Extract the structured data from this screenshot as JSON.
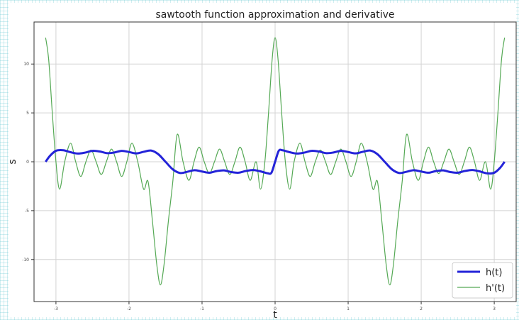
{
  "chart_data": {
    "type": "line",
    "title": "sawtooth function approximation and derivative",
    "xlabel": "t",
    "ylabel": "s",
    "xlim": [
      -3.3,
      3.3
    ],
    "ylim": [
      -14.3,
      14.3
    ],
    "xticks": [
      -3,
      -2,
      -1,
      0,
      1,
      2,
      3
    ],
    "yticks": [
      -10,
      -5,
      0,
      5,
      10
    ],
    "grid": true,
    "legend": "bottom-right",
    "series": [
      {
        "name": "h(t)",
        "color": "#2323d8",
        "x": [
          -3.14159,
          -3.08,
          -3.0,
          -2.9,
          -2.8,
          -2.7,
          -2.6,
          -2.5,
          -2.4,
          -2.3,
          -2.2,
          -2.1,
          -2.0,
          -1.9,
          -1.8,
          -1.7,
          -1.6,
          -1.5,
          -1.4,
          -1.3,
          -1.2,
          -1.1,
          -1.0,
          -0.9,
          -0.8,
          -0.7,
          -0.6,
          -0.5,
          -0.4,
          -0.3,
          -0.2,
          -0.1,
          -0.05,
          0.0,
          0.05,
          0.1,
          0.2,
          0.3,
          0.4,
          0.5,
          0.6,
          0.7,
          0.8,
          0.9,
          1.0,
          1.1,
          1.2,
          1.3,
          1.4,
          1.5,
          1.6,
          1.7,
          1.8,
          1.9,
          2.0,
          2.1,
          2.2,
          2.3,
          2.4,
          2.5,
          2.6,
          2.7,
          2.8,
          2.9,
          3.0,
          3.08,
          3.14159
        ],
        "values": [
          0.0,
          0.62,
          1.12,
          1.18,
          0.98,
          0.84,
          0.94,
          1.12,
          1.05,
          0.88,
          0.95,
          1.12,
          1.0,
          0.86,
          1.02,
          1.15,
          0.78,
          0.0,
          -0.78,
          -1.15,
          -1.02,
          -0.86,
          -1.0,
          -1.12,
          -0.95,
          -0.88,
          -1.05,
          -1.12,
          -0.94,
          -0.84,
          -0.98,
          -1.18,
          -1.12,
          0.0,
          1.12,
          1.18,
          0.98,
          0.84,
          0.94,
          1.12,
          1.05,
          0.88,
          0.95,
          1.12,
          1.0,
          0.86,
          1.02,
          1.15,
          0.78,
          0.0,
          -0.78,
          -1.15,
          -1.02,
          -0.86,
          -1.0,
          -1.12,
          -0.95,
          -0.88,
          -1.05,
          -1.12,
          -0.94,
          -0.84,
          -0.98,
          -1.18,
          -1.12,
          -0.62,
          0.0
        ]
      },
      {
        "name": "h'(t)",
        "color": "#55a955",
        "x": [
          -3.14159,
          -3.1,
          -3.05,
          -3.0,
          -2.95,
          -2.88,
          -2.8,
          -2.73,
          -2.66,
          -2.59,
          -2.52,
          -2.45,
          -2.38,
          -2.31,
          -2.24,
          -2.17,
          -2.1,
          -2.03,
          -1.96,
          -1.88,
          -1.8,
          -1.74,
          -1.68,
          -1.62,
          -1.57,
          -1.52,
          -1.46,
          -1.4,
          -1.34,
          -1.26,
          -1.18,
          -1.11,
          -1.04,
          -0.97,
          -0.9,
          -0.83,
          -0.76,
          -0.69,
          -0.62,
          -0.55,
          -0.48,
          -0.41,
          -0.34,
          -0.26,
          -0.2,
          -0.14,
          -0.09,
          -0.04,
          0.0,
          0.04,
          0.09,
          0.14,
          0.2,
          0.26,
          0.34,
          0.41,
          0.48,
          0.55,
          0.62,
          0.69,
          0.76,
          0.83,
          0.9,
          0.97,
          1.04,
          1.11,
          1.18,
          1.26,
          1.34,
          1.4,
          1.46,
          1.52,
          1.57,
          1.62,
          1.68,
          1.74,
          1.8,
          1.88,
          1.96,
          2.03,
          2.1,
          2.17,
          2.24,
          2.31,
          2.38,
          2.45,
          2.52,
          2.59,
          2.66,
          2.73,
          2.8,
          2.88,
          2.95,
          3.0,
          3.05,
          3.1,
          3.14159
        ],
        "values": [
          12.7,
          10.5,
          5.0,
          0.0,
          -2.8,
          0.0,
          1.9,
          0.0,
          -1.5,
          0.0,
          1.2,
          0.0,
          -1.3,
          0.0,
          1.3,
          0.0,
          -1.5,
          0.0,
          1.9,
          0.0,
          -2.8,
          -2.0,
          -6.0,
          -10.5,
          -12.6,
          -10.5,
          -6.0,
          -2.0,
          2.8,
          0.0,
          -1.9,
          0.0,
          1.5,
          0.0,
          -1.2,
          0.0,
          1.3,
          0.0,
          -1.3,
          0.0,
          1.5,
          0.0,
          -1.9,
          0.0,
          -2.8,
          0.0,
          5.0,
          10.5,
          12.7,
          10.5,
          5.0,
          0.0,
          -2.8,
          0.0,
          1.9,
          0.0,
          -1.5,
          0.0,
          1.2,
          0.0,
          -1.3,
          0.0,
          1.3,
          0.0,
          -1.5,
          0.0,
          1.9,
          0.0,
          -2.8,
          -2.0,
          -6.0,
          -10.5,
          -12.6,
          -10.5,
          -6.0,
          -2.0,
          2.8,
          0.0,
          -1.9,
          0.0,
          1.5,
          0.0,
          -1.2,
          0.0,
          1.3,
          0.0,
          -1.3,
          0.0,
          1.5,
          0.0,
          -1.9,
          0.0,
          -2.8,
          0.0,
          5.0,
          10.5,
          12.7
        ]
      }
    ]
  }
}
